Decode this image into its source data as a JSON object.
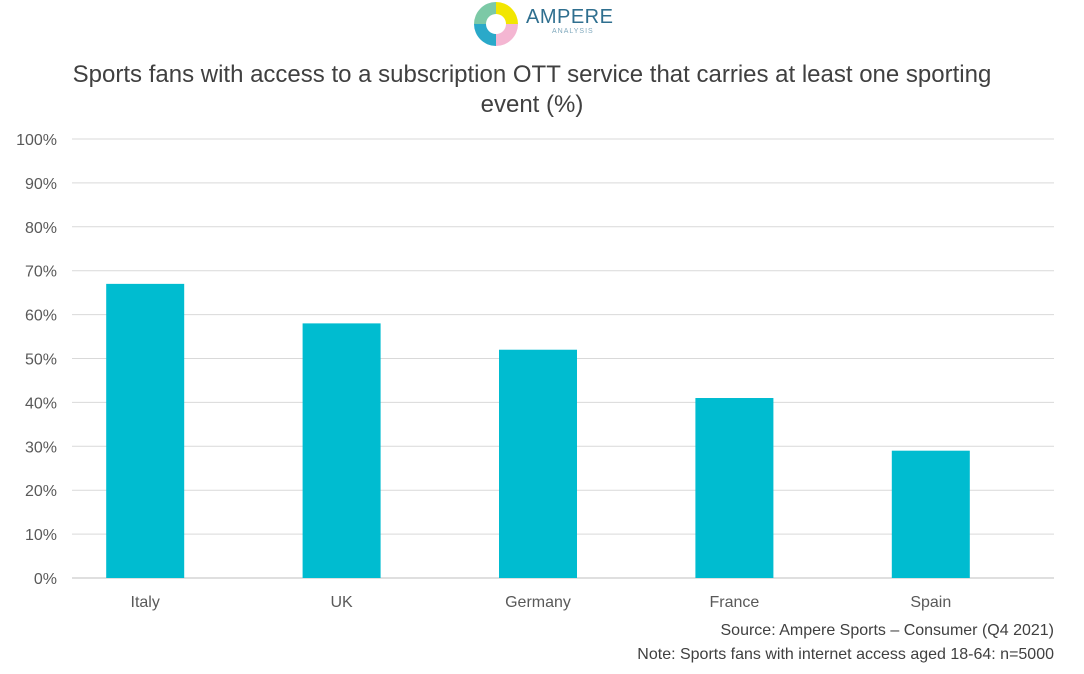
{
  "logo": {
    "name": "AMPERE",
    "sub": "ANALYSIS",
    "icon": "ampere-ring-logo"
  },
  "chart_data": {
    "type": "bar",
    "title": "Sports fans with access to a subscription OTT service that carries at least one sporting event (%)",
    "categories": [
      "Italy",
      "UK",
      "Germany",
      "France",
      "Spain"
    ],
    "values": [
      67,
      58,
      52,
      41,
      29
    ],
    "ylim": [
      0,
      100
    ],
    "yticks": [
      "0%",
      "10%",
      "20%",
      "30%",
      "40%",
      "50%",
      "60%",
      "70%",
      "80%",
      "90%",
      "100%"
    ],
    "grid": true,
    "bar_color": "#00BCD0"
  },
  "footer": {
    "source": "Source: Ampere Sports – Consumer (Q4 2021)",
    "note": "Note: Sports fans with internet access aged 18-64: n=5000"
  }
}
